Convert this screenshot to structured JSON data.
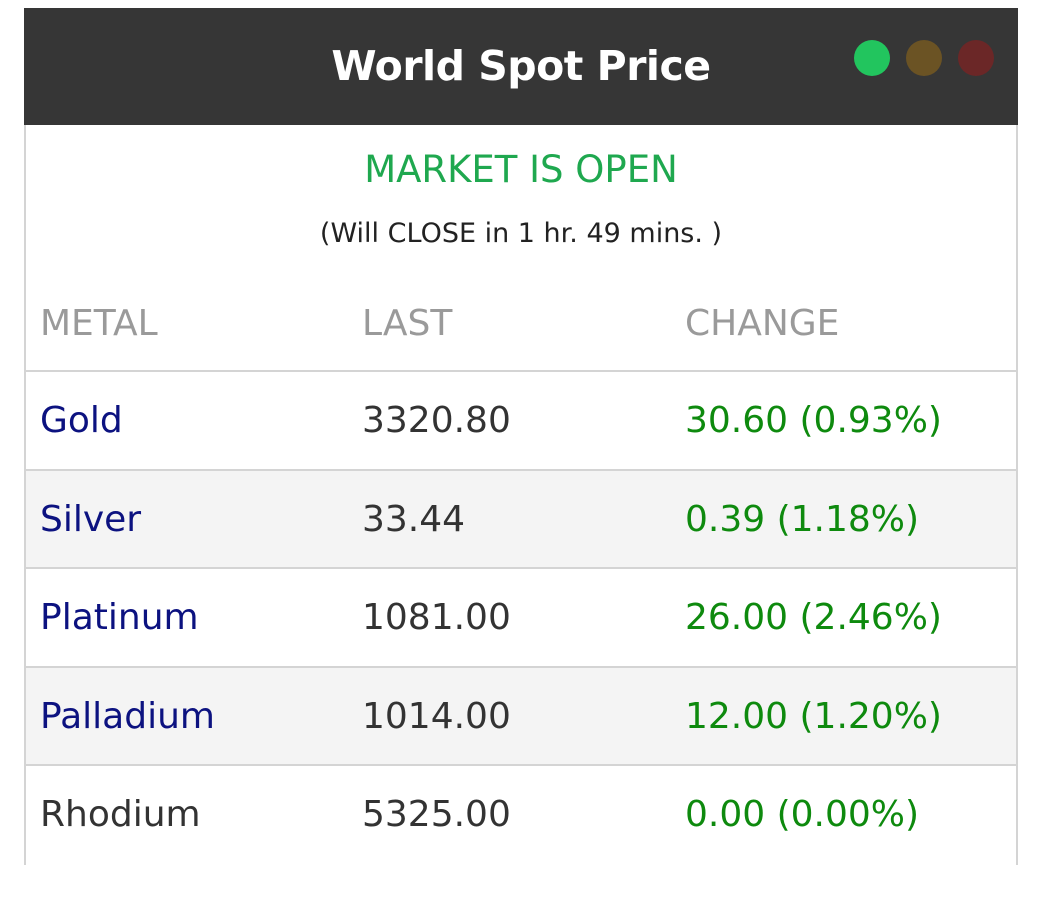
{
  "header": {
    "title": "World Spot Price",
    "indicators": [
      {
        "name": "green",
        "color": "#22c55e"
      },
      {
        "name": "amber",
        "color": "#6b5324"
      },
      {
        "name": "red",
        "color": "#6b2727"
      }
    ]
  },
  "market": {
    "status": "MARKET IS OPEN",
    "countdown": "(Will CLOSE in 1 hr. 49 mins. )"
  },
  "table": {
    "columns": [
      "METAL",
      "LAST",
      "CHANGE"
    ],
    "rows": [
      {
        "metal": "Gold",
        "last": "3320.80",
        "change": "30.60 (0.93%)"
      },
      {
        "metal": "Silver",
        "last": "33.44",
        "change": "0.39 (1.18%)"
      },
      {
        "metal": "Platinum",
        "last": "1081.00",
        "change": "26.00 (2.46%)"
      },
      {
        "metal": "Palladium",
        "last": "1014.00",
        "change": "12.00 (1.20%)"
      },
      {
        "metal": "Rhodium",
        "last": "5325.00",
        "change": "0.00 (0.00%)"
      }
    ]
  },
  "colors": {
    "header_bg": "#363636",
    "status_green": "#1fa84f",
    "metal_link": "#0c1280",
    "change_positive": "#0e8a0e"
  }
}
